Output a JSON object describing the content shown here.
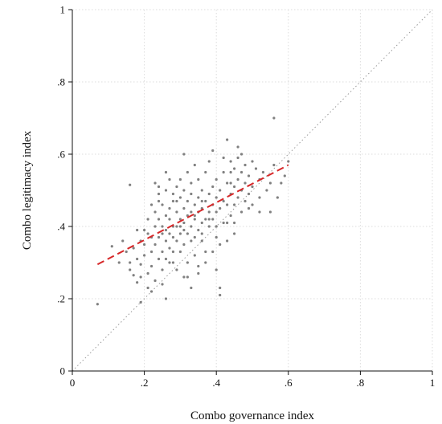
{
  "chart_data": {
    "type": "scatter",
    "title": "",
    "xlabel": "Combo governance index",
    "ylabel": "Combo legitimacy index",
    "xlim": [
      0,
      1
    ],
    "ylim": [
      0,
      1
    ],
    "xticks": [
      0,
      0.2,
      0.4,
      0.6,
      0.8,
      1
    ],
    "yticks": [
      0,
      0.2,
      0.4,
      0.6,
      0.8,
      1
    ],
    "xtick_labels": [
      "0",
      ".2",
      ".4",
      ".6",
      ".8",
      "1"
    ],
    "ytick_labels": [
      "0",
      ".2",
      ".4",
      ".6",
      ".8",
      "1"
    ],
    "grid": true,
    "reference_line": {
      "style": "dotted",
      "from": [
        0,
        0
      ],
      "to": [
        1,
        1
      ]
    },
    "fit_line": {
      "style": "dashed",
      "color": "#d62728",
      "from": [
        0.07,
        0.295
      ],
      "to": [
        0.6,
        0.57
      ]
    },
    "point_color": "#808080",
    "points": [
      [
        0.07,
        0.185
      ],
      [
        0.11,
        0.345
      ],
      [
        0.13,
        0.3
      ],
      [
        0.14,
        0.36
      ],
      [
        0.15,
        0.33
      ],
      [
        0.16,
        0.515
      ],
      [
        0.16,
        0.28
      ],
      [
        0.17,
        0.34
      ],
      [
        0.17,
        0.265
      ],
      [
        0.18,
        0.31
      ],
      [
        0.18,
        0.245
      ],
      [
        0.19,
        0.295
      ],
      [
        0.19,
        0.36
      ],
      [
        0.19,
        0.19
      ],
      [
        0.2,
        0.32
      ],
      [
        0.2,
        0.39
      ],
      [
        0.2,
        0.35
      ],
      [
        0.21,
        0.27
      ],
      [
        0.21,
        0.42
      ],
      [
        0.21,
        0.23
      ],
      [
        0.22,
        0.37
      ],
      [
        0.22,
        0.46
      ],
      [
        0.22,
        0.33
      ],
      [
        0.22,
        0.29
      ],
      [
        0.23,
        0.4
      ],
      [
        0.23,
        0.52
      ],
      [
        0.23,
        0.35
      ],
      [
        0.23,
        0.44
      ],
      [
        0.23,
        0.25
      ],
      [
        0.24,
        0.37
      ],
      [
        0.24,
        0.49
      ],
      [
        0.24,
        0.31
      ],
      [
        0.24,
        0.42
      ],
      [
        0.24,
        0.51
      ],
      [
        0.25,
        0.4
      ],
      [
        0.25,
        0.33
      ],
      [
        0.25,
        0.46
      ],
      [
        0.25,
        0.38
      ],
      [
        0.25,
        0.28
      ],
      [
        0.26,
        0.43
      ],
      [
        0.26,
        0.5
      ],
      [
        0.26,
        0.36
      ],
      [
        0.26,
        0.39
      ],
      [
        0.26,
        0.2
      ],
      [
        0.26,
        0.31
      ],
      [
        0.27,
        0.45
      ],
      [
        0.27,
        0.38
      ],
      [
        0.27,
        0.53
      ],
      [
        0.27,
        0.42
      ],
      [
        0.27,
        0.34
      ],
      [
        0.28,
        0.47
      ],
      [
        0.28,
        0.4
      ],
      [
        0.28,
        0.3
      ],
      [
        0.28,
        0.49
      ],
      [
        0.28,
        0.37
      ],
      [
        0.29,
        0.44
      ],
      [
        0.29,
        0.51
      ],
      [
        0.29,
        0.36
      ],
      [
        0.29,
        0.4
      ],
      [
        0.29,
        0.28
      ],
      [
        0.3,
        0.42
      ],
      [
        0.3,
        0.48
      ],
      [
        0.3,
        0.53
      ],
      [
        0.3,
        0.38
      ],
      [
        0.3,
        0.33
      ],
      [
        0.31,
        0.45
      ],
      [
        0.31,
        0.5
      ],
      [
        0.31,
        0.6
      ],
      [
        0.31,
        0.41
      ],
      [
        0.31,
        0.35
      ],
      [
        0.31,
        0.26
      ],
      [
        0.32,
        0.47
      ],
      [
        0.32,
        0.43
      ],
      [
        0.32,
        0.55
      ],
      [
        0.32,
        0.38
      ],
      [
        0.32,
        0.3
      ],
      [
        0.33,
        0.49
      ],
      [
        0.33,
        0.44
      ],
      [
        0.33,
        0.52
      ],
      [
        0.33,
        0.4
      ],
      [
        0.33,
        0.23
      ],
      [
        0.34,
        0.46
      ],
      [
        0.34,
        0.42
      ],
      [
        0.34,
        0.57
      ],
      [
        0.34,
        0.37
      ],
      [
        0.34,
        0.32
      ],
      [
        0.35,
        0.48
      ],
      [
        0.35,
        0.44
      ],
      [
        0.35,
        0.53
      ],
      [
        0.35,
        0.39
      ],
      [
        0.35,
        0.27
      ],
      [
        0.36,
        0.45
      ],
      [
        0.36,
        0.5
      ],
      [
        0.36,
        0.41
      ],
      [
        0.36,
        0.36
      ],
      [
        0.37,
        0.47
      ],
      [
        0.37,
        0.55
      ],
      [
        0.37,
        0.42
      ],
      [
        0.37,
        0.33
      ],
      [
        0.38,
        0.49
      ],
      [
        0.38,
        0.44
      ],
      [
        0.38,
        0.58
      ],
      [
        0.38,
        0.4
      ],
      [
        0.39,
        0.51
      ],
      [
        0.39,
        0.46
      ],
      [
        0.39,
        0.61
      ],
      [
        0.39,
        0.42
      ],
      [
        0.4,
        0.48
      ],
      [
        0.4,
        0.53
      ],
      [
        0.4,
        0.44
      ],
      [
        0.4,
        0.28
      ],
      [
        0.4,
        0.37
      ],
      [
        0.41,
        0.5
      ],
      [
        0.41,
        0.45
      ],
      [
        0.41,
        0.23
      ],
      [
        0.41,
        0.21
      ],
      [
        0.42,
        0.55
      ],
      [
        0.42,
        0.47
      ],
      [
        0.42,
        0.59
      ],
      [
        0.42,
        0.41
      ],
      [
        0.43,
        0.64
      ],
      [
        0.43,
        0.52
      ],
      [
        0.43,
        0.46
      ],
      [
        0.43,
        0.36
      ],
      [
        0.44,
        0.55
      ],
      [
        0.44,
        0.49
      ],
      [
        0.44,
        0.58
      ],
      [
        0.44,
        0.43
      ],
      [
        0.45,
        0.56
      ],
      [
        0.45,
        0.51
      ],
      [
        0.45,
        0.46
      ],
      [
        0.45,
        0.38
      ],
      [
        0.46,
        0.59
      ],
      [
        0.46,
        0.53
      ],
      [
        0.46,
        0.48
      ],
      [
        0.46,
        0.62
      ],
      [
        0.47,
        0.55
      ],
      [
        0.47,
        0.5
      ],
      [
        0.47,
        0.6
      ],
      [
        0.48,
        0.57
      ],
      [
        0.48,
        0.52
      ],
      [
        0.48,
        0.47
      ],
      [
        0.49,
        0.54
      ],
      [
        0.49,
        0.49
      ],
      [
        0.5,
        0.58
      ],
      [
        0.5,
        0.51
      ],
      [
        0.5,
        0.46
      ],
      [
        0.51,
        0.56
      ],
      [
        0.52,
        0.53
      ],
      [
        0.52,
        0.48
      ],
      [
        0.53,
        0.55
      ],
      [
        0.54,
        0.5
      ],
      [
        0.55,
        0.52
      ],
      [
        0.55,
        0.44
      ],
      [
        0.56,
        0.57
      ],
      [
        0.56,
        0.7
      ],
      [
        0.57,
        0.48
      ],
      [
        0.58,
        0.52
      ],
      [
        0.59,
        0.54
      ],
      [
        0.6,
        0.58
      ],
      [
        0.35,
        0.29
      ],
      [
        0.28,
        0.33
      ],
      [
        0.24,
        0.47
      ],
      [
        0.21,
        0.38
      ],
      [
        0.18,
        0.39
      ],
      [
        0.26,
        0.55
      ],
      [
        0.3,
        0.4
      ],
      [
        0.33,
        0.36
      ],
      [
        0.36,
        0.38
      ],
      [
        0.38,
        0.42
      ],
      [
        0.27,
        0.3
      ],
      [
        0.29,
        0.47
      ],
      [
        0.31,
        0.39
      ],
      [
        0.34,
        0.43
      ],
      [
        0.36,
        0.47
      ],
      [
        0.4,
        0.4
      ],
      [
        0.43,
        0.41
      ],
      [
        0.45,
        0.41
      ],
      [
        0.47,
        0.44
      ],
      [
        0.49,
        0.45
      ],
      [
        0.52,
        0.44
      ],
      [
        0.44,
        0.52
      ],
      [
        0.41,
        0.35
      ],
      [
        0.39,
        0.33
      ],
      [
        0.37,
        0.3
      ],
      [
        0.32,
        0.26
      ],
      [
        0.25,
        0.24
      ],
      [
        0.22,
        0.22
      ],
      [
        0.19,
        0.26
      ],
      [
        0.16,
        0.3
      ]
    ]
  }
}
